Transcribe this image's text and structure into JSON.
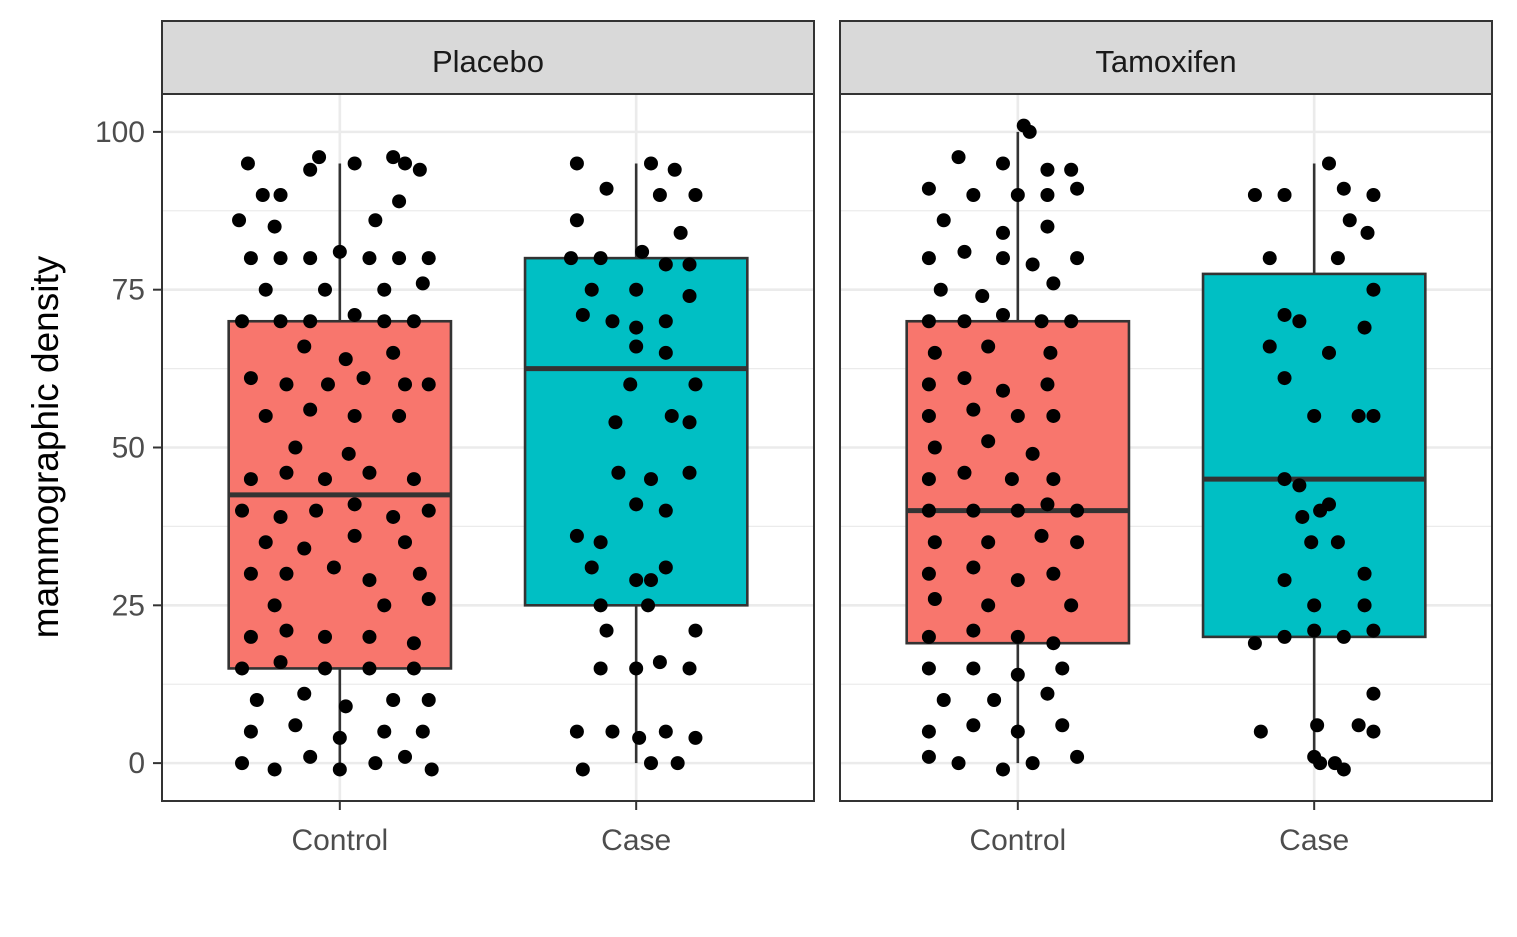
{
  "chart_data": {
    "type": "boxplot",
    "title": "",
    "xlabel": "",
    "ylabel": "mammographic density",
    "ylim": [
      -6,
      106
    ],
    "yticks": [
      0,
      25,
      50,
      75,
      100
    ],
    "ytick_labels": [
      "0",
      "25",
      "50",
      "75",
      "100"
    ],
    "categories": [
      "Control",
      "Case"
    ],
    "fill_colors": {
      "Control": "#F8766D",
      "Case": "#00BFC4"
    },
    "grid": true,
    "legend": "none",
    "panels": [
      {
        "name": "Placebo",
        "boxes": [
          {
            "category": "Control",
            "min": 0,
            "q1": 15,
            "median": 42.5,
            "q3": 70,
            "max": 95
          },
          {
            "category": "Case",
            "min": 0,
            "q1": 25,
            "median": 62.5,
            "q3": 80,
            "max": 95
          }
        ],
        "points": {
          "Control": [
            [
              -0.31,
              95
            ],
            [
              -0.26,
              90
            ],
            [
              -0.2,
              90
            ],
            [
              -0.1,
              94
            ],
            [
              -0.07,
              96
            ],
            [
              0.05,
              95
            ],
            [
              0.18,
              96
            ],
            [
              0.22,
              95
            ],
            [
              0.27,
              94
            ],
            [
              -0.34,
              86
            ],
            [
              -0.22,
              85
            ],
            [
              0.12,
              86
            ],
            [
              0.2,
              89
            ],
            [
              -0.3,
              80
            ],
            [
              -0.2,
              80
            ],
            [
              -0.1,
              80
            ],
            [
              0,
              81
            ],
            [
              0.1,
              80
            ],
            [
              0.2,
              80
            ],
            [
              0.3,
              80
            ],
            [
              -0.25,
              75
            ],
            [
              -0.05,
              75
            ],
            [
              0.15,
              75
            ],
            [
              0.28,
              76
            ],
            [
              -0.33,
              70
            ],
            [
              -0.2,
              70
            ],
            [
              -0.1,
              70
            ],
            [
              0.05,
              71
            ],
            [
              0.15,
              70
            ],
            [
              0.25,
              70
            ],
            [
              -0.12,
              66
            ],
            [
              0.02,
              64
            ],
            [
              0.18,
              65
            ],
            [
              -0.3,
              61
            ],
            [
              -0.18,
              60
            ],
            [
              -0.04,
              60
            ],
            [
              0.08,
              61
            ],
            [
              0.22,
              60
            ],
            [
              0.3,
              60
            ],
            [
              -0.25,
              55
            ],
            [
              -0.1,
              56
            ],
            [
              0.05,
              55
            ],
            [
              0.2,
              55
            ],
            [
              -0.15,
              50
            ],
            [
              0.03,
              49
            ],
            [
              -0.3,
              45
            ],
            [
              -0.18,
              46
            ],
            [
              -0.05,
              45
            ],
            [
              0.1,
              46
            ],
            [
              0.25,
              45
            ],
            [
              -0.33,
              40
            ],
            [
              -0.2,
              39
            ],
            [
              -0.08,
              40
            ],
            [
              0.05,
              41
            ],
            [
              0.18,
              39
            ],
            [
              0.3,
              40
            ],
            [
              -0.25,
              35
            ],
            [
              -0.12,
              34
            ],
            [
              0.05,
              36
            ],
            [
              0.22,
              35
            ],
            [
              -0.3,
              30
            ],
            [
              -0.18,
              30
            ],
            [
              -0.02,
              31
            ],
            [
              0.1,
              29
            ],
            [
              0.27,
              30
            ],
            [
              -0.22,
              25
            ],
            [
              0.15,
              25
            ],
            [
              0.3,
              26
            ],
            [
              -0.3,
              20
            ],
            [
              -0.18,
              21
            ],
            [
              -0.05,
              20
            ],
            [
              0.1,
              20
            ],
            [
              0.25,
              19
            ],
            [
              -0.33,
              15
            ],
            [
              -0.2,
              16
            ],
            [
              -0.05,
              15
            ],
            [
              0.1,
              15
            ],
            [
              0.25,
              15
            ],
            [
              -0.28,
              10
            ],
            [
              -0.12,
              11
            ],
            [
              0.02,
              9
            ],
            [
              0.18,
              10
            ],
            [
              0.3,
              10
            ],
            [
              -0.3,
              5
            ],
            [
              -0.15,
              6
            ],
            [
              0,
              4
            ],
            [
              0.15,
              5
            ],
            [
              0.28,
              5
            ],
            [
              -0.33,
              0
            ],
            [
              -0.22,
              -1
            ],
            [
              -0.1,
              1
            ],
            [
              0,
              -1
            ],
            [
              0.12,
              0
            ],
            [
              0.22,
              1
            ],
            [
              0.31,
              -1
            ]
          ],
          "Case": [
            [
              -0.2,
              95
            ],
            [
              0.05,
              95
            ],
            [
              0.13,
              94
            ],
            [
              -0.1,
              91
            ],
            [
              0.08,
              90
            ],
            [
              0.2,
              90
            ],
            [
              -0.2,
              86
            ],
            [
              0.15,
              84
            ],
            [
              -0.22,
              80
            ],
            [
              -0.12,
              80
            ],
            [
              0.02,
              81
            ],
            [
              0.1,
              79
            ],
            [
              0.18,
              79
            ],
            [
              -0.15,
              75
            ],
            [
              0,
              75
            ],
            [
              0.18,
              74
            ],
            [
              -0.18,
              71
            ],
            [
              -0.08,
              70
            ],
            [
              0,
              69
            ],
            [
              0.1,
              70
            ],
            [
              0,
              66
            ],
            [
              0.1,
              65
            ],
            [
              -0.02,
              60
            ],
            [
              0.2,
              60
            ],
            [
              -0.07,
              54
            ],
            [
              0.12,
              55
            ],
            [
              0.18,
              54
            ],
            [
              -0.06,
              46
            ],
            [
              0.05,
              45
            ],
            [
              0.18,
              46
            ],
            [
              0,
              41
            ],
            [
              0.1,
              40
            ],
            [
              -0.2,
              36
            ],
            [
              -0.12,
              35
            ],
            [
              -0.15,
              31
            ],
            [
              0,
              29
            ],
            [
              0.05,
              29
            ],
            [
              0.1,
              31
            ],
            [
              -0.12,
              25
            ],
            [
              0.04,
              25
            ],
            [
              -0.1,
              21
            ],
            [
              0.2,
              21
            ],
            [
              -0.12,
              15
            ],
            [
              0,
              15
            ],
            [
              0.08,
              16
            ],
            [
              0.18,
              15
            ],
            [
              -0.2,
              5
            ],
            [
              -0.08,
              5
            ],
            [
              0.01,
              4
            ],
            [
              0.1,
              5
            ],
            [
              0.2,
              4
            ],
            [
              -0.18,
              -1
            ],
            [
              0.05,
              0
            ],
            [
              0.14,
              0
            ]
          ]
        }
      },
      {
        "name": "Tamoxifen",
        "boxes": [
          {
            "category": "Control",
            "min": 0,
            "q1": 19,
            "median": 40,
            "q3": 70,
            "max": 100
          },
          {
            "category": "Case",
            "min": 0,
            "q1": 20,
            "median": 45,
            "q3": 77.5,
            "max": 95
          }
        ],
        "points": {
          "Control": [
            [
              0.02,
              101
            ],
            [
              0.04,
              100
            ],
            [
              -0.2,
              96
            ],
            [
              -0.05,
              95
            ],
            [
              0.1,
              94
            ],
            [
              0.18,
              94
            ],
            [
              -0.3,
              91
            ],
            [
              -0.15,
              90
            ],
            [
              0,
              90
            ],
            [
              0.1,
              90
            ],
            [
              0.2,
              91
            ],
            [
              -0.25,
              86
            ],
            [
              -0.05,
              84
            ],
            [
              0.1,
              85
            ],
            [
              -0.3,
              80
            ],
            [
              -0.18,
              81
            ],
            [
              -0.05,
              80
            ],
            [
              0.05,
              79
            ],
            [
              0.2,
              80
            ],
            [
              -0.26,
              75
            ],
            [
              -0.12,
              74
            ],
            [
              0.12,
              76
            ],
            [
              -0.3,
              70
            ],
            [
              -0.18,
              70
            ],
            [
              -0.05,
              71
            ],
            [
              0.08,
              70
            ],
            [
              0.18,
              70
            ],
            [
              -0.28,
              65
            ],
            [
              -0.1,
              66
            ],
            [
              0.11,
              65
            ],
            [
              -0.3,
              60
            ],
            [
              -0.18,
              61
            ],
            [
              -0.05,
              59
            ],
            [
              0.1,
              60
            ],
            [
              -0.3,
              55
            ],
            [
              -0.15,
              56
            ],
            [
              0,
              55
            ],
            [
              0.12,
              55
            ],
            [
              -0.28,
              50
            ],
            [
              -0.1,
              51
            ],
            [
              0.05,
              49
            ],
            [
              -0.3,
              45
            ],
            [
              -0.18,
              46
            ],
            [
              -0.02,
              45
            ],
            [
              0.12,
              45
            ],
            [
              -0.3,
              40
            ],
            [
              -0.15,
              40
            ],
            [
              0,
              40
            ],
            [
              0.1,
              41
            ],
            [
              0.2,
              40
            ],
            [
              -0.28,
              35
            ],
            [
              -0.1,
              35
            ],
            [
              0.08,
              36
            ],
            [
              0.2,
              35
            ],
            [
              -0.3,
              30
            ],
            [
              -0.15,
              31
            ],
            [
              0,
              29
            ],
            [
              0.12,
              30
            ],
            [
              -0.28,
              26
            ],
            [
              -0.1,
              25
            ],
            [
              0.18,
              25
            ],
            [
              -0.3,
              20
            ],
            [
              -0.15,
              21
            ],
            [
              0,
              20
            ],
            [
              0.12,
              19
            ],
            [
              -0.3,
              15
            ],
            [
              -0.15,
              15
            ],
            [
              0,
              14
            ],
            [
              0.15,
              15
            ],
            [
              -0.25,
              10
            ],
            [
              -0.08,
              10
            ],
            [
              0.1,
              11
            ],
            [
              -0.3,
              5
            ],
            [
              -0.15,
              6
            ],
            [
              0,
              5
            ],
            [
              0.15,
              6
            ],
            [
              -0.3,
              1
            ],
            [
              -0.2,
              0
            ],
            [
              -0.05,
              -1
            ],
            [
              0.05,
              0
            ],
            [
              0.2,
              1
            ]
          ],
          "Case": [
            [
              -0.2,
              90
            ],
            [
              -0.1,
              90
            ],
            [
              0.1,
              91
            ],
            [
              0.2,
              90
            ],
            [
              0.05,
              95
            ],
            [
              -0.15,
              80
            ],
            [
              0.08,
              80
            ],
            [
              0.12,
              86
            ],
            [
              0.18,
              84
            ],
            [
              0.2,
              75
            ],
            [
              -0.1,
              71
            ],
            [
              -0.05,
              70
            ],
            [
              0.17,
              69
            ],
            [
              -0.15,
              66
            ],
            [
              0.05,
              65
            ],
            [
              -0.1,
              61
            ],
            [
              0,
              55
            ],
            [
              0.15,
              55
            ],
            [
              0.2,
              55
            ],
            [
              -0.1,
              45
            ],
            [
              -0.05,
              44
            ],
            [
              0.02,
              40
            ],
            [
              0.05,
              41
            ],
            [
              -0.04,
              39
            ],
            [
              -0.01,
              35
            ],
            [
              0.08,
              35
            ],
            [
              -0.1,
              29
            ],
            [
              0.17,
              30
            ],
            [
              -0.2,
              19
            ],
            [
              0,
              25
            ],
            [
              0.1,
              20
            ],
            [
              0.2,
              21
            ],
            [
              -0.1,
              20
            ],
            [
              0.17,
              25
            ],
            [
              0,
              21
            ],
            [
              0.2,
              11
            ],
            [
              -0.18,
              5
            ],
            [
              0.01,
              6
            ],
            [
              0.15,
              6
            ],
            [
              0.2,
              5
            ],
            [
              0,
              1
            ],
            [
              0.02,
              0
            ],
            [
              0.07,
              0
            ],
            [
              0.1,
              -1
            ]
          ]
        }
      }
    ]
  }
}
